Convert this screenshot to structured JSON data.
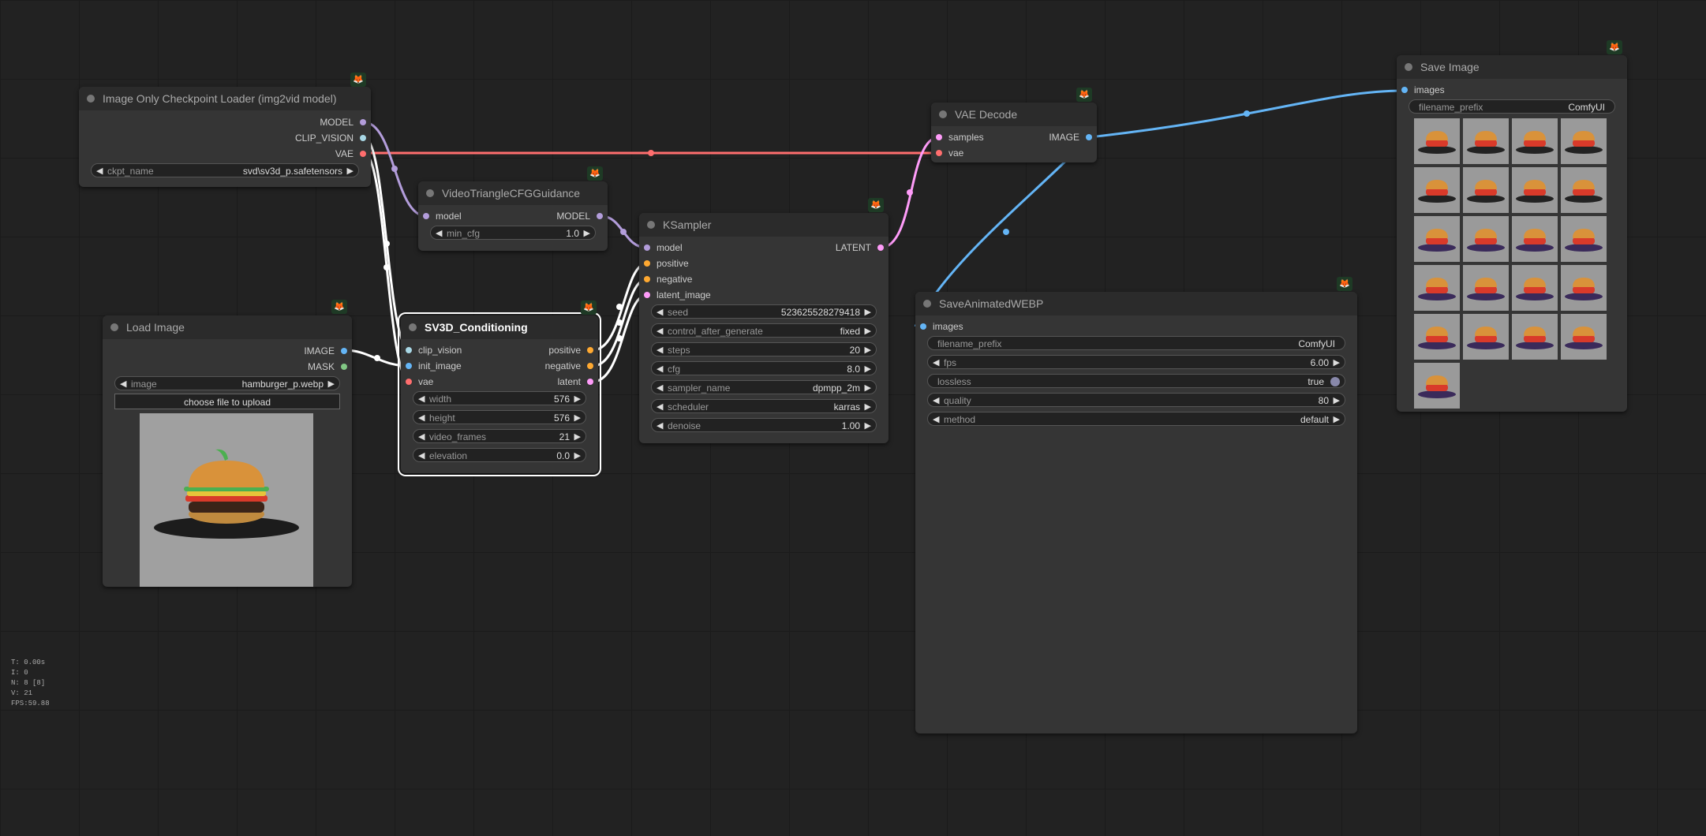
{
  "nodes": {
    "checkpoint": {
      "title": "Image Only Checkpoint Loader (img2vid model)",
      "outputs": [
        "MODEL",
        "CLIP_VISION",
        "VAE"
      ],
      "ckpt_name": {
        "label": "ckpt_name",
        "value": "svd\\sv3d_p.safetensors"
      }
    },
    "guidance": {
      "title": "VideoTriangleCFGGuidance",
      "input": "model",
      "output": "MODEL",
      "min_cfg": {
        "label": "min_cfg",
        "value": "1.0"
      }
    },
    "load_image": {
      "title": "Load Image",
      "outputs": [
        "IMAGE",
        "MASK"
      ],
      "image": {
        "label": "image",
        "value": "hamburger_p.webp"
      },
      "upload_label": "choose file to upload"
    },
    "sv3d": {
      "title": "SV3D_Conditioning",
      "inputs": [
        "clip_vision",
        "init_image",
        "vae"
      ],
      "outputs": [
        "positive",
        "negative",
        "latent"
      ],
      "widgets": [
        {
          "label": "width",
          "value": "576"
        },
        {
          "label": "height",
          "value": "576"
        },
        {
          "label": "video_frames",
          "value": "21"
        },
        {
          "label": "elevation",
          "value": "0.0"
        }
      ]
    },
    "ksampler": {
      "title": "KSampler",
      "inputs": [
        "model",
        "positive",
        "negative",
        "latent_image"
      ],
      "output": "LATENT",
      "widgets": [
        {
          "label": "seed",
          "value": "523625528279418"
        },
        {
          "label": "control_after_generate",
          "value": "fixed"
        },
        {
          "label": "steps",
          "value": "20"
        },
        {
          "label": "cfg",
          "value": "8.0"
        },
        {
          "label": "sampler_name",
          "value": "dpmpp_2m"
        },
        {
          "label": "scheduler",
          "value": "karras"
        },
        {
          "label": "denoise",
          "value": "1.00"
        }
      ]
    },
    "vae_decode": {
      "title": "VAE Decode",
      "inputs": [
        "samples",
        "vae"
      ],
      "output": "IMAGE"
    },
    "save_webp": {
      "title": "SaveAnimatedWEBP",
      "input": "images",
      "widgets": [
        {
          "label": "filename_prefix",
          "value": "ComfyUI"
        },
        {
          "label": "fps",
          "value": "6.00"
        },
        {
          "label": "lossless",
          "value": "true"
        },
        {
          "label": "quality",
          "value": "80"
        },
        {
          "label": "method",
          "value": "default"
        }
      ]
    },
    "save_image": {
      "title": "Save Image",
      "input": "images",
      "filename_prefix": {
        "label": "filename_prefix",
        "value": "ComfyUI"
      },
      "thumbnail_count": 21
    }
  },
  "stats": [
    "T: 0.00s",
    "I: 0",
    "N: 8 [8]",
    "V: 21",
    "FPS:59.88"
  ],
  "colors": {
    "model": "#b39ddb",
    "clip_vision": "#a9d8e6",
    "vae": "#ff6e6e",
    "image": "#64b5f6",
    "mask": "#81c784",
    "conditioning": "#ffa931",
    "latent": "#ff9cf9",
    "badge": "#f58a1f"
  }
}
